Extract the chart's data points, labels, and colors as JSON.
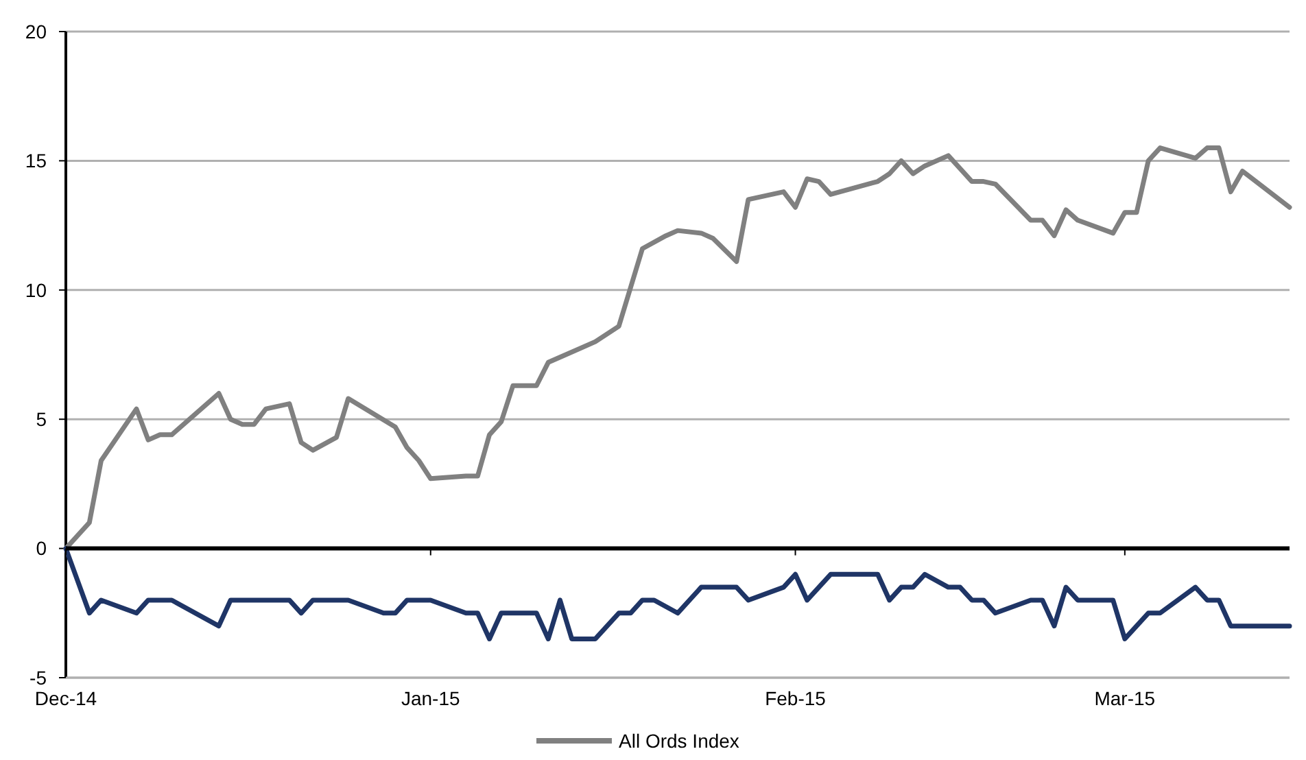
{
  "chart_data": {
    "type": "line",
    "xlim": [
      "2014-12-01",
      "2015-03-15"
    ],
    "xticks": [
      {
        "value": "2014-12-01",
        "label": "Dec-14"
      },
      {
        "value": "2015-01-01",
        "label": "Jan-15"
      },
      {
        "value": "2015-02-01",
        "label": "Feb-15"
      },
      {
        "value": "2015-03-01",
        "label": "Mar-15"
      }
    ],
    "ylim": [
      -5,
      20
    ],
    "yticks": [
      -5,
      0,
      5,
      10,
      15,
      20
    ],
    "grid": "y",
    "legend": "bottom",
    "marker": "none",
    "line_style": "solid",
    "series": [
      {
        "name": "All Ords Index",
        "color": "#808080",
        "x": [
          "2014-12-01",
          "2014-12-03",
          "2014-12-04",
          "2014-12-07",
          "2014-12-08",
          "2014-12-09",
          "2014-12-10",
          "2014-12-14",
          "2014-12-15",
          "2014-12-16",
          "2014-12-17",
          "2014-12-18",
          "2014-12-20",
          "2014-12-21",
          "2014-12-22",
          "2014-12-24",
          "2014-12-25",
          "2014-12-29",
          "2014-12-30",
          "2014-12-31",
          "2015-01-01",
          "2015-01-04",
          "2015-01-05",
          "2015-01-06",
          "2015-01-07",
          "2015-01-08",
          "2015-01-10",
          "2015-01-11",
          "2015-01-12",
          "2015-01-15",
          "2015-01-17",
          "2015-01-18",
          "2015-01-19",
          "2015-01-21",
          "2015-01-22",
          "2015-01-24",
          "2015-01-25",
          "2015-01-27",
          "2015-01-28",
          "2015-01-31",
          "2015-02-01",
          "2015-02-02",
          "2015-02-03",
          "2015-02-04",
          "2015-02-08",
          "2015-02-09",
          "2015-02-10",
          "2015-02-11",
          "2015-02-12",
          "2015-02-14",
          "2015-02-16",
          "2015-02-17",
          "2015-02-18",
          "2015-02-21",
          "2015-02-22",
          "2015-02-23",
          "2015-02-24",
          "2015-02-25",
          "2015-02-28",
          "2015-03-01",
          "2015-03-02",
          "2015-03-03",
          "2015-03-04",
          "2015-03-07",
          "2015-03-08",
          "2015-03-09",
          "2015-03-10",
          "2015-03-11",
          "2015-03-15"
        ],
        "values": [
          0,
          1.0,
          3.4,
          5.4,
          4.2,
          4.4,
          4.4,
          6.0,
          5.0,
          4.8,
          4.8,
          5.4,
          5.6,
          4.1,
          3.8,
          4.3,
          5.8,
          4.7,
          3.9,
          3.4,
          2.7,
          2.8,
          2.8,
          4.4,
          4.9,
          6.3,
          6.3,
          7.2,
          7.4,
          8.0,
          8.6,
          10.1,
          11.6,
          12.1,
          12.3,
          12.2,
          12.0,
          11.1,
          13.5,
          13.8,
          13.2,
          14.3,
          14.2,
          13.7,
          14.2,
          14.5,
          15.0,
          14.5,
          14.8,
          15.2,
          14.2,
          14.2,
          14.1,
          12.7,
          12.7,
          12.1,
          13.1,
          12.7,
          12.2,
          13.0,
          13.0,
          15.0,
          15.5,
          15.1,
          15.5,
          15.5,
          13.8,
          14.6,
          13.2
        ]
      },
      {
        "color": "#1f3566",
        "x": [
          "2014-12-01",
          "2014-12-03",
          "2014-12-04",
          "2014-12-07",
          "2014-12-08",
          "2014-12-10",
          "2014-12-14",
          "2014-12-15",
          "2014-12-20",
          "2014-12-21",
          "2014-12-22",
          "2014-12-25",
          "2014-12-28",
          "2014-12-29",
          "2014-12-30",
          "2015-01-01",
          "2015-01-04",
          "2015-01-05",
          "2015-01-06",
          "2015-01-07",
          "2015-01-10",
          "2015-01-11",
          "2015-01-12",
          "2015-01-13",
          "2015-01-15",
          "2015-01-17",
          "2015-01-18",
          "2015-01-19",
          "2015-01-20",
          "2015-01-22",
          "2015-01-24",
          "2015-01-27",
          "2015-01-28",
          "2015-01-31",
          "2015-02-01",
          "2015-02-02",
          "2015-02-04",
          "2015-02-08",
          "2015-02-09",
          "2015-02-10",
          "2015-02-11",
          "2015-02-12",
          "2015-02-14",
          "2015-02-15",
          "2015-02-16",
          "2015-02-17",
          "2015-02-18",
          "2015-02-21",
          "2015-02-22",
          "2015-02-23",
          "2015-02-24",
          "2015-02-25",
          "2015-02-28",
          "2015-03-01",
          "2015-03-03",
          "2015-03-04",
          "2015-03-07",
          "2015-03-08",
          "2015-03-09",
          "2015-03-10",
          "2015-03-15"
        ],
        "values": [
          0,
          -2.5,
          -2,
          -2.5,
          -2,
          -2,
          -3,
          -2,
          -2,
          -2.5,
          -2,
          -2,
          -2.5,
          -2.5,
          -2,
          -2,
          -2.5,
          -2.5,
          -3.5,
          -2.5,
          -2.5,
          -3.5,
          -2,
          -3.5,
          -3.5,
          -2.5,
          -2.5,
          -2,
          -2,
          -2.5,
          -1.5,
          -1.5,
          -2,
          -1.5,
          -1,
          -2,
          -1,
          -1,
          -2,
          -1.5,
          -1.5,
          -1,
          -1.5,
          -1.5,
          -2,
          -2,
          -2.5,
          -2,
          -2,
          -3,
          -1.5,
          -2,
          -2,
          -3.5,
          -2.5,
          -2.5,
          -1.5,
          -2,
          -2,
          -3,
          -3
        ]
      }
    ]
  }
}
